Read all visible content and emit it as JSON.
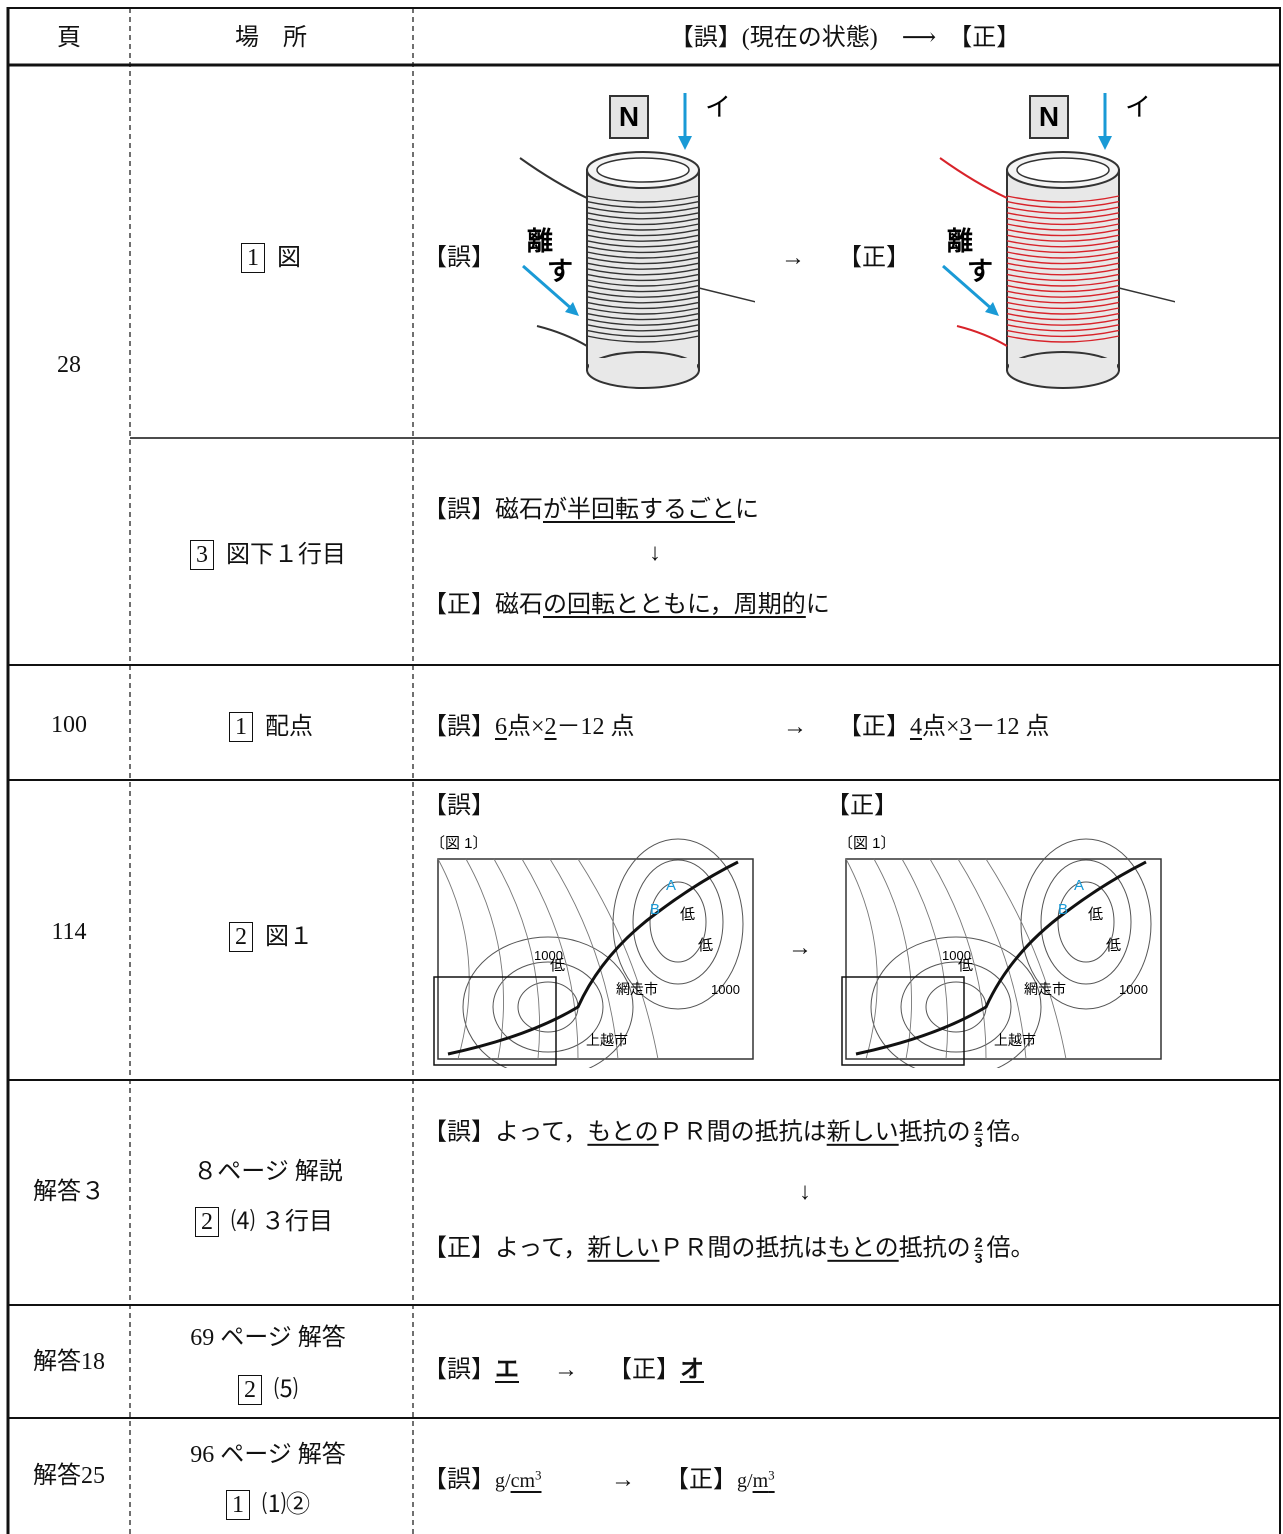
{
  "header": {
    "page": "頁",
    "place": "場　所",
    "change": "【誤】(現在の状態)　⟶　【正】"
  },
  "rows": [
    {
      "page": "28",
      "items": [
        {
          "place_box": "1",
          "place": "図",
          "wrong_label": "【誤】",
          "arrow": "→",
          "right_label": "【正】",
          "figure": {
            "magnet": "N",
            "direction": "イ",
            "action_1": "離",
            "action_2": "す"
          }
        },
        {
          "place_box": "3",
          "place": "図下１行目",
          "wrong": [
            "【誤】磁石",
            "が半回転するごと",
            "に"
          ],
          "arrow": "↓",
          "right": [
            "【正】磁石",
            "の回転とともに，周期的",
            "に"
          ]
        }
      ]
    },
    {
      "page": "100",
      "place_box": "1",
      "place": "配点",
      "wrong": [
        "【誤】",
        "6",
        "点×",
        "2",
        "－12 点"
      ],
      "arrow": "→",
      "right": [
        "【正】",
        "4",
        "点×",
        "3",
        "－12 点"
      ]
    },
    {
      "page": "114",
      "place_box": "2",
      "place": "図１",
      "wrong_label": "【誤】",
      "right_label": "【正】",
      "arrow": "→",
      "figure": {
        "caption": "〔図 1〕",
        "front_a": "A",
        "front_b": "B",
        "low": "低",
        "isobar": "1000",
        "city_1": "網走市",
        "city_2": "上越市"
      }
    },
    {
      "page": "解答３",
      "place_line1": "８ページ 解説",
      "place_box": "2",
      "place_line2": "⑷ ３行目",
      "wrong": [
        "【誤】よって，",
        "もとの",
        "ＰＲ間の抵抗は",
        "新しい",
        "抵抗の",
        "倍。"
      ],
      "arrow": "↓",
      "right": [
        "【正】よって，",
        "新しい",
        "ＰＲ間の抵抗は",
        "もとの",
        "抵抗の",
        "倍。"
      ],
      "fraction": {
        "numerator": "2",
        "denominator": "3"
      }
    },
    {
      "page": "解答18",
      "place_line1": "69 ページ 解答",
      "place_box": "2",
      "place_line2": "⑸",
      "wrong": [
        "【誤】",
        "エ"
      ],
      "arrow": "→",
      "right": [
        "【正】",
        "オ"
      ]
    },
    {
      "page": "解答25",
      "place_line1": "96 ページ 解答",
      "place_box": "1",
      "place_line2": "⑴②",
      "wrong": [
        "【誤】",
        "g/",
        "cm",
        "3"
      ],
      "arrow": "→",
      "right": [
        "【正】",
        "g/",
        "m",
        "3"
      ]
    }
  ]
}
